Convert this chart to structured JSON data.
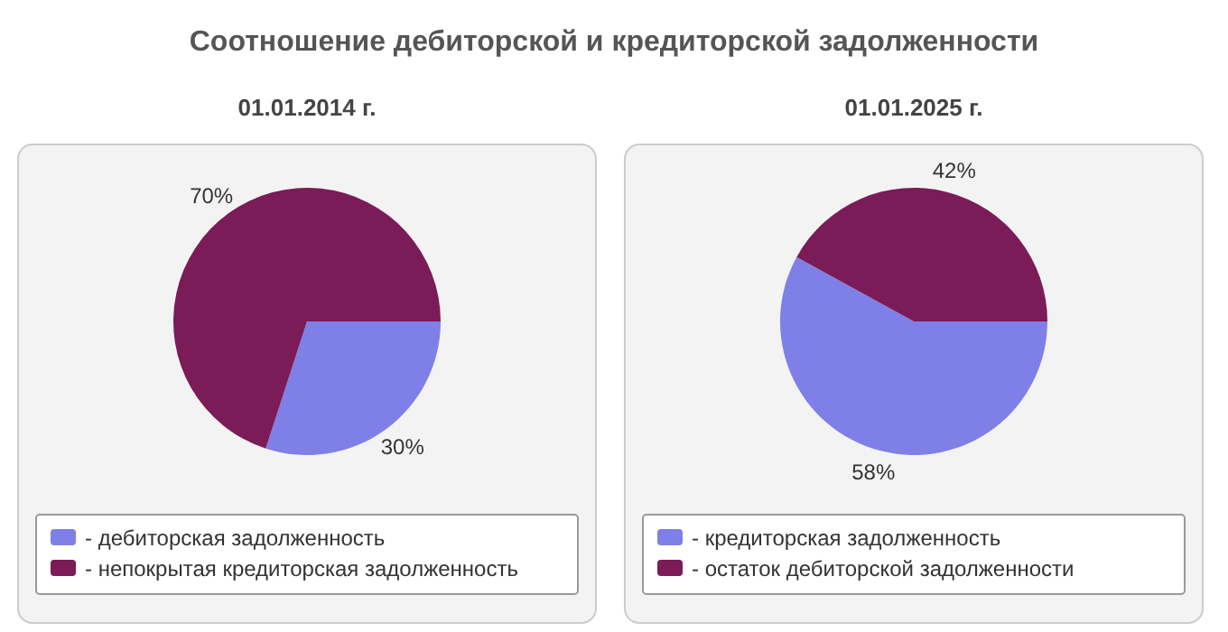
{
  "chart_data": [
    {
      "type": "pie",
      "title": "Соотношение дебиторской и кредиторской задолженности",
      "subtitle": "01.01.2014 г.",
      "categories": [
        "- дебиторская задолженность",
        "- непокрытая кредиторская задолженность"
      ],
      "values": [
        30,
        70
      ],
      "colors": [
        "#7f7fe8",
        "#7b1b57"
      ],
      "value_labels": [
        "30%",
        "70%"
      ],
      "legend": "bottom"
    },
    {
      "type": "pie",
      "subtitle": "01.01.2025 г.",
      "categories": [
        "- кредиторская задолженность",
        "- остаток дебиторской задолженности"
      ],
      "values": [
        58,
        42
      ],
      "colors": [
        "#7f7fe8",
        "#7b1b57"
      ],
      "value_labels": [
        "58%",
        "42%"
      ],
      "legend": "bottom"
    }
  ]
}
